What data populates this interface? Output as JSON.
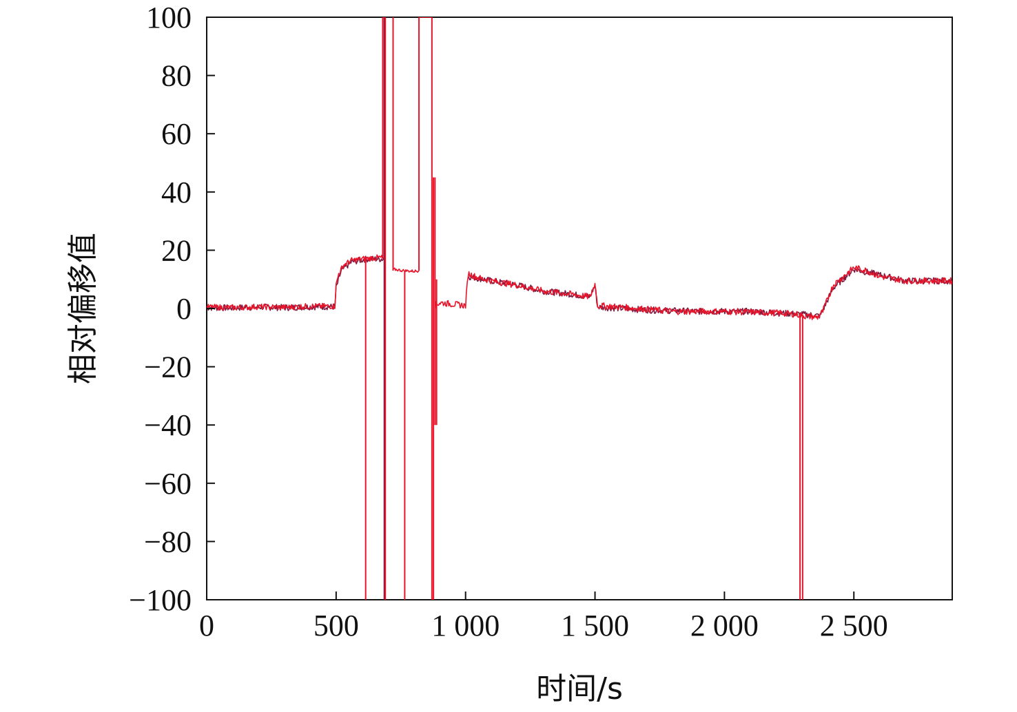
{
  "chart_data": {
    "type": "line",
    "title": "",
    "xlabel": "时间/s",
    "ylabel": "相对偏移值",
    "xlim": [
      0,
      2880
    ],
    "ylim": [
      -100,
      100
    ],
    "grid": false,
    "legend": "none",
    "x_ticks": [
      0,
      500,
      1000,
      1500,
      2000,
      2500
    ],
    "x_tick_labels": [
      "0",
      "500",
      "1 000",
      "1 500",
      "2 000",
      "2 500"
    ],
    "y_ticks": [
      100,
      80,
      60,
      40,
      20,
      0,
      -20,
      -40,
      -60,
      -80,
      -100
    ],
    "y_tick_labels": [
      "100",
      "80",
      "60",
      "40",
      "20",
      "0",
      "−20",
      "−40",
      "−60",
      "−80",
      "−100"
    ],
    "colors": {
      "series_a": "#e8142a",
      "series_b": "#7a1a40",
      "axis": "#111111"
    },
    "series": [
      {
        "x": [
          0,
          100,
          200,
          300,
          400,
          495,
          500,
          510,
          530,
          560,
          600,
          640,
          670,
          684
        ],
        "y": [
          0.5,
          0.3,
          0.6,
          0.4,
          0.8,
          0.8,
          8,
          12,
          15,
          16.5,
          17,
          17.3,
          17.5,
          17.2
        ]
      },
      {
        "x": [
          720,
          760,
          800,
          820
        ],
        "y": [
          13.5,
          13,
          12.8,
          13
        ]
      },
      {
        "x": [
          880,
          900,
          950,
          1000,
          1010,
          1050,
          1100,
          1200,
          1300,
          1400,
          1480,
          1490,
          1500,
          1510,
          1600,
          1800,
          2000,
          2200,
          2280,
          2300,
          2360,
          2380,
          2420,
          2500,
          2550,
          2600,
          2700,
          2800,
          2880
        ],
        "y": [
          1,
          2,
          1.5,
          1,
          12,
          10.5,
          9.5,
          8,
          6,
          5,
          4,
          6,
          8.5,
          1,
          0.5,
          -1,
          -1,
          -1.5,
          -2,
          -2.5,
          -3,
          -1,
          8,
          14,
          13,
          11,
          9.5,
          9.5,
          9.5
        ]
      },
      {
        "x": [
          0,
          100,
          200,
          300,
          400,
          495,
          500,
          520,
          560,
          620,
          684
        ],
        "y": [
          0.3,
          0.2,
          0.5,
          0.3,
          0.6,
          0.6,
          7,
          13,
          16,
          17,
          17
        ]
      },
      {
        "x": [
          1010,
          1100,
          1200,
          1300,
          1400,
          1480,
          1500,
          1510,
          1700,
          1900,
          2100,
          2300,
          2370,
          2420,
          2500,
          2600,
          2700,
          2880
        ],
        "y": [
          11,
          9.5,
          8,
          6,
          5,
          4,
          8,
          0.5,
          -0.5,
          -1,
          -1,
          -2,
          -2.5,
          7,
          13.5,
          11.5,
          9.5,
          9.5
        ]
      }
    ],
    "spikes": [
      {
        "x": 614,
        "y_from": 17,
        "y_to": -100
      },
      {
        "x": 680,
        "y_from": 17,
        "y_to": 100
      },
      {
        "x": 686,
        "y_from": 100,
        "y_to": -100
      },
      {
        "x": 690,
        "y_from": -100,
        "y_to": 100
      },
      {
        "x": 720,
        "y_from": 100,
        "y_to": 13
      },
      {
        "x": 765,
        "y_from": 13,
        "y_to": -100
      },
      {
        "x": 820,
        "y_from": 13,
        "y_to": 100
      },
      {
        "x": 870,
        "y_from": 100,
        "y_to": -100
      },
      {
        "x": 876,
        "y_from": -100,
        "y_to": 45
      },
      {
        "x": 882,
        "y_from": 45,
        "y_to": -40
      },
      {
        "x": 888,
        "y_from": -40,
        "y_to": 10
      },
      {
        "x": 2292,
        "y_from": -2,
        "y_to": -100
      },
      {
        "x": 2302,
        "y_from": -100,
        "y_to": -2
      }
    ]
  }
}
